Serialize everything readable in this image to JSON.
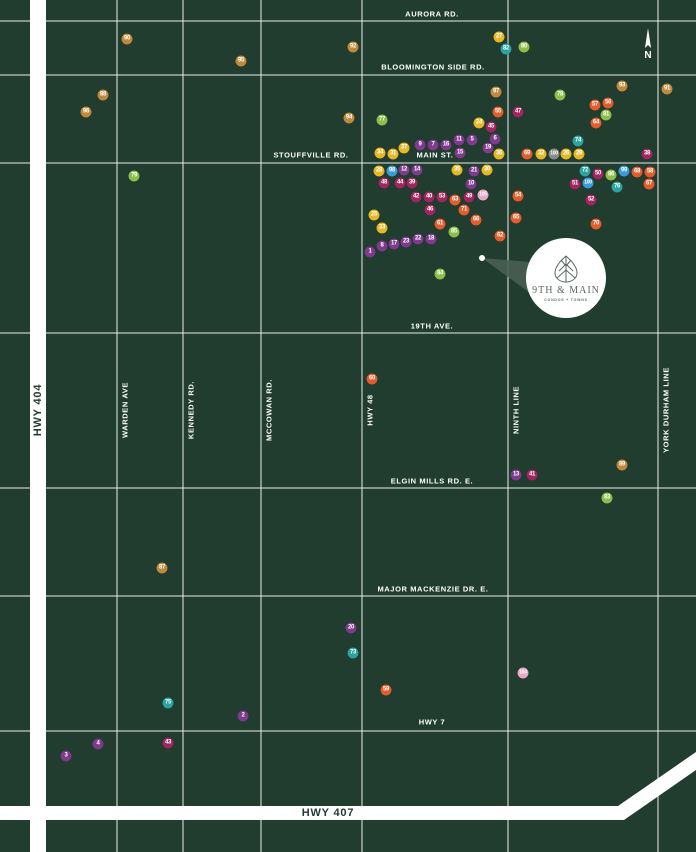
{
  "colors": {
    "background": "#213d30",
    "road": "#ffffff",
    "highway": "#ffffff",
    "grid_line": "#2f4d3f",
    "pin_colors": {
      "gold": "#e6b826",
      "purple": "#7e3b8c",
      "magenta": "#a1255e",
      "orange": "#e25c2c",
      "lightgreen": "#8cbf4a",
      "teal": "#2ba4a0",
      "blue": "#3b9ad9",
      "tan": "#c08a3e",
      "pink": "#e8a8c8",
      "gray": "#8a8a8a"
    }
  },
  "roads": {
    "aurora": "AURORA RD.",
    "bloomington": "BLOOMINGTON SIDE RD.",
    "stouffville": "STOUFFVILLE RD.",
    "main": "MAIN ST.",
    "nineteenth": "19TH AVE.",
    "elgin": "ELGIN MILLS RD. E.",
    "mackenzie": "MAJOR MACKENZIE DR. E.",
    "hwy7": "HWY 7",
    "warden": "WARDEN AVE",
    "kennedy": "KENNEDY RD.",
    "mccowan": "MCCOWAN RD.",
    "hwy48": "HWY 48",
    "ninth": "NINTH LINE",
    "york": "YORK DURHAM LINE"
  },
  "highways": {
    "hwy404": "HWY 404",
    "hwy407": "HWY 407"
  },
  "site": {
    "brand": "9TH & MAIN",
    "tagline": "CONDOS + TOWNS",
    "logo_icon": "leaf-icon"
  },
  "north_label": "N",
  "pins": [
    {
      "n": "27",
      "c": "gold"
    },
    {
      "n": "82",
      "c": "teal"
    },
    {
      "n": "80",
      "c": "lightgreen"
    },
    {
      "n": "90",
      "c": "tan"
    },
    {
      "n": "92",
      "c": "tan"
    },
    {
      "n": "95",
      "c": "tan"
    },
    {
      "n": "93",
      "c": "tan"
    },
    {
      "n": "91",
      "c": "tan"
    },
    {
      "n": "97",
      "c": "tan"
    },
    {
      "n": "78",
      "c": "lightgreen"
    },
    {
      "n": "88",
      "c": "tan"
    },
    {
      "n": "96",
      "c": "tan"
    },
    {
      "n": "56",
      "c": "orange"
    },
    {
      "n": "57",
      "c": "orange"
    },
    {
      "n": "55",
      "c": "orange"
    },
    {
      "n": "47",
      "c": "magenta"
    },
    {
      "n": "81",
      "c": "lightgreen"
    },
    {
      "n": "94",
      "c": "tan"
    },
    {
      "n": "77",
      "c": "lightgreen"
    },
    {
      "n": "24",
      "c": "gold"
    },
    {
      "n": "45",
      "c": "magenta"
    },
    {
      "n": "64",
      "c": "orange"
    },
    {
      "n": "11",
      "c": "purple"
    },
    {
      "n": "5",
      "c": "purple"
    },
    {
      "n": "6",
      "c": "purple"
    },
    {
      "n": "74",
      "c": "teal"
    },
    {
      "n": "9",
      "c": "purple"
    },
    {
      "n": "7",
      "c": "purple"
    },
    {
      "n": "16",
      "c": "purple"
    },
    {
      "n": "37",
      "c": "gold"
    },
    {
      "n": "34",
      "c": "gold"
    },
    {
      "n": "31",
      "c": "gold"
    },
    {
      "n": "15",
      "c": "purple"
    },
    {
      "n": "19",
      "c": "purple"
    },
    {
      "n": "36",
      "c": "gold"
    },
    {
      "n": "69",
      "c": "orange"
    },
    {
      "n": "32",
      "c": "gold"
    },
    {
      "n": "100",
      "c": "gray"
    },
    {
      "n": "26",
      "c": "gold"
    },
    {
      "n": "29",
      "c": "gold"
    },
    {
      "n": "38",
      "c": "magenta"
    },
    {
      "n": "79",
      "c": "lightgreen"
    },
    {
      "n": "28",
      "c": "gold"
    },
    {
      "n": "98",
      "c": "blue"
    },
    {
      "n": "12",
      "c": "purple"
    },
    {
      "n": "14",
      "c": "purple"
    },
    {
      "n": "35",
      "c": "gold"
    },
    {
      "n": "21",
      "c": "purple"
    },
    {
      "n": "30",
      "c": "gold"
    },
    {
      "n": "72",
      "c": "teal"
    },
    {
      "n": "50",
      "c": "magenta"
    },
    {
      "n": "86",
      "c": "lightgreen"
    },
    {
      "n": "99",
      "c": "blue"
    },
    {
      "n": "68",
      "c": "orange"
    },
    {
      "n": "58",
      "c": "orange"
    },
    {
      "n": "48",
      "c": "magenta"
    },
    {
      "n": "44",
      "c": "magenta"
    },
    {
      "n": "39",
      "c": "magenta"
    },
    {
      "n": "10",
      "c": "purple"
    },
    {
      "n": "51",
      "c": "magenta"
    },
    {
      "n": "100",
      "c": "blue"
    },
    {
      "n": "76",
      "c": "teal"
    },
    {
      "n": "67",
      "c": "orange"
    },
    {
      "n": "42",
      "c": "magenta"
    },
    {
      "n": "40",
      "c": "magenta"
    },
    {
      "n": "53",
      "c": "magenta"
    },
    {
      "n": "63",
      "c": "orange"
    },
    {
      "n": "49",
      "c": "magenta"
    },
    {
      "n": "105",
      "c": "pink"
    },
    {
      "n": "54",
      "c": "orange"
    },
    {
      "n": "52",
      "c": "magenta"
    },
    {
      "n": "46",
      "c": "magenta"
    },
    {
      "n": "71",
      "c": "orange"
    },
    {
      "n": "25",
      "c": "gold"
    },
    {
      "n": "66",
      "c": "orange"
    },
    {
      "n": "65",
      "c": "orange"
    },
    {
      "n": "70",
      "c": "orange"
    },
    {
      "n": "61",
      "c": "orange"
    },
    {
      "n": "33",
      "c": "gold"
    },
    {
      "n": "85",
      "c": "lightgreen"
    },
    {
      "n": "62",
      "c": "orange"
    },
    {
      "n": "18",
      "c": "purple"
    },
    {
      "n": "22",
      "c": "purple"
    },
    {
      "n": "23",
      "c": "purple"
    },
    {
      "n": "17",
      "c": "purple"
    },
    {
      "n": "8",
      "c": "purple"
    },
    {
      "n": "1",
      "c": "purple"
    },
    {
      "n": "84",
      "c": "lightgreen"
    },
    {
      "n": "60",
      "c": "orange"
    },
    {
      "n": "13",
      "c": "purple"
    },
    {
      "n": "41",
      "c": "magenta"
    },
    {
      "n": "89",
      "c": "tan"
    },
    {
      "n": "83",
      "c": "lightgreen"
    },
    {
      "n": "87",
      "c": "tan"
    },
    {
      "n": "20",
      "c": "purple"
    },
    {
      "n": "73",
      "c": "teal"
    },
    {
      "n": "104",
      "c": "pink"
    },
    {
      "n": "59",
      "c": "orange"
    },
    {
      "n": "75",
      "c": "teal"
    },
    {
      "n": "2",
      "c": "purple"
    },
    {
      "n": "43",
      "c": "magenta"
    },
    {
      "n": "4",
      "c": "purple"
    },
    {
      "n": "3",
      "c": "purple"
    }
  ]
}
